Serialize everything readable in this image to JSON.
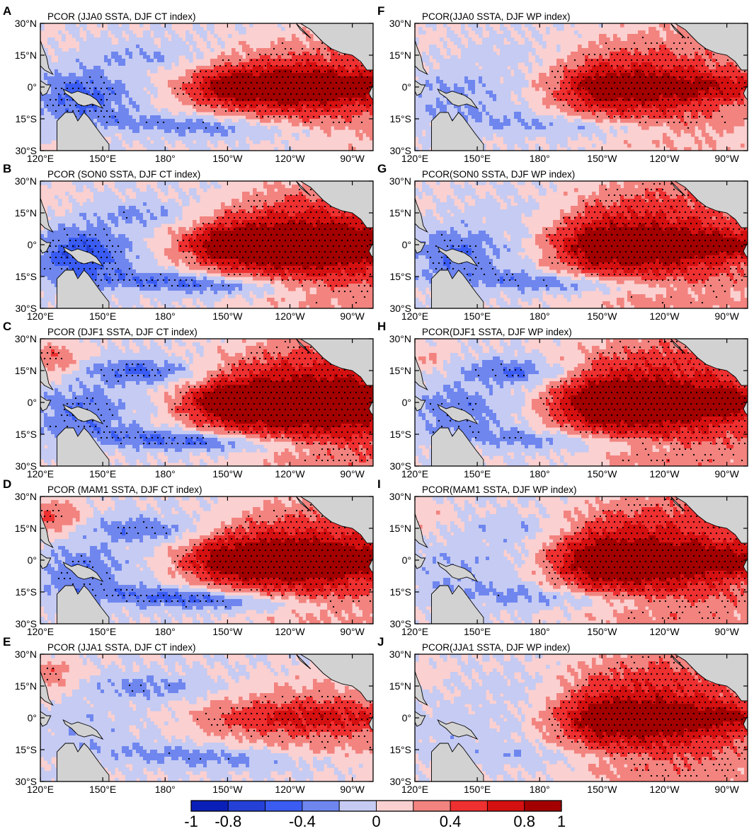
{
  "colors": {
    "levels": [
      "#0a1fb8",
      "#2440d6",
      "#3a5cf2",
      "#6f86ef",
      "#c5cbf2",
      "#fbd0d0",
      "#f2837f",
      "#ee3030",
      "#d51010",
      "#a30000"
    ],
    "land": "#d2d2d2",
    "stipple": "#000000"
  },
  "x_ticks": [
    "120°E",
    "150°E",
    "180°",
    "150°W",
    "120°W",
    "90°W"
  ],
  "y_ticks": [
    "30°N",
    "15°N",
    "0°",
    "15°S",
    "30°S"
  ],
  "panels": [
    {
      "id": "A",
      "letter": "A",
      "title": "PCOR (JJA0 SSTA, DJF CT index)",
      "season": "JJA0",
      "index": "CT"
    },
    {
      "id": "B",
      "letter": "B",
      "title": "PCOR (SON0 SSTA, DJF CT index)",
      "season": "SON0",
      "index": "CT"
    },
    {
      "id": "C",
      "letter": "C",
      "title": "PCOR (DJF1 SSTA, DJF CT index)",
      "season": "DJF1",
      "index": "CT"
    },
    {
      "id": "D",
      "letter": "D",
      "title": "PCOR (MAM1 SSTA, DJF CT index)",
      "season": "MAM1",
      "index": "CT"
    },
    {
      "id": "E",
      "letter": "E",
      "title": "PCOR (JJA1 SSTA, DJF CT index)",
      "season": "JJA1",
      "index": "CT"
    },
    {
      "id": "F",
      "letter": "F",
      "title": "PCOR(JJA0 SSTA, DJF WP index)",
      "season": "JJA0",
      "index": "WP"
    },
    {
      "id": "G",
      "letter": "G",
      "title": "PCOR(SON0 SSTA, DJF WP index)",
      "season": "SON0",
      "index": "WP"
    },
    {
      "id": "H",
      "letter": "H",
      "title": "PCOR(DJF1 SSTA, DJF WP index)",
      "season": "DJF1",
      "index": "WP"
    },
    {
      "id": "I",
      "letter": "I",
      "title": "PCOR(MAM1 SSTA, DJF WP index)",
      "season": "MAM1",
      "index": "WP"
    },
    {
      "id": "J",
      "letter": "J",
      "title": "PCOR(JJA1 SSTA, DJF WP index)",
      "season": "JJA1",
      "index": "WP"
    }
  ],
  "colorbar": {
    "levels": [
      -1,
      -0.8,
      -0.6,
      -0.4,
      -0.2,
      0,
      0.2,
      0.4,
      0.6,
      0.8,
      1
    ],
    "labels": [
      "-1",
      "-0.8",
      "-0.4",
      "0",
      "0.4",
      "0.8",
      "1"
    ]
  }
}
